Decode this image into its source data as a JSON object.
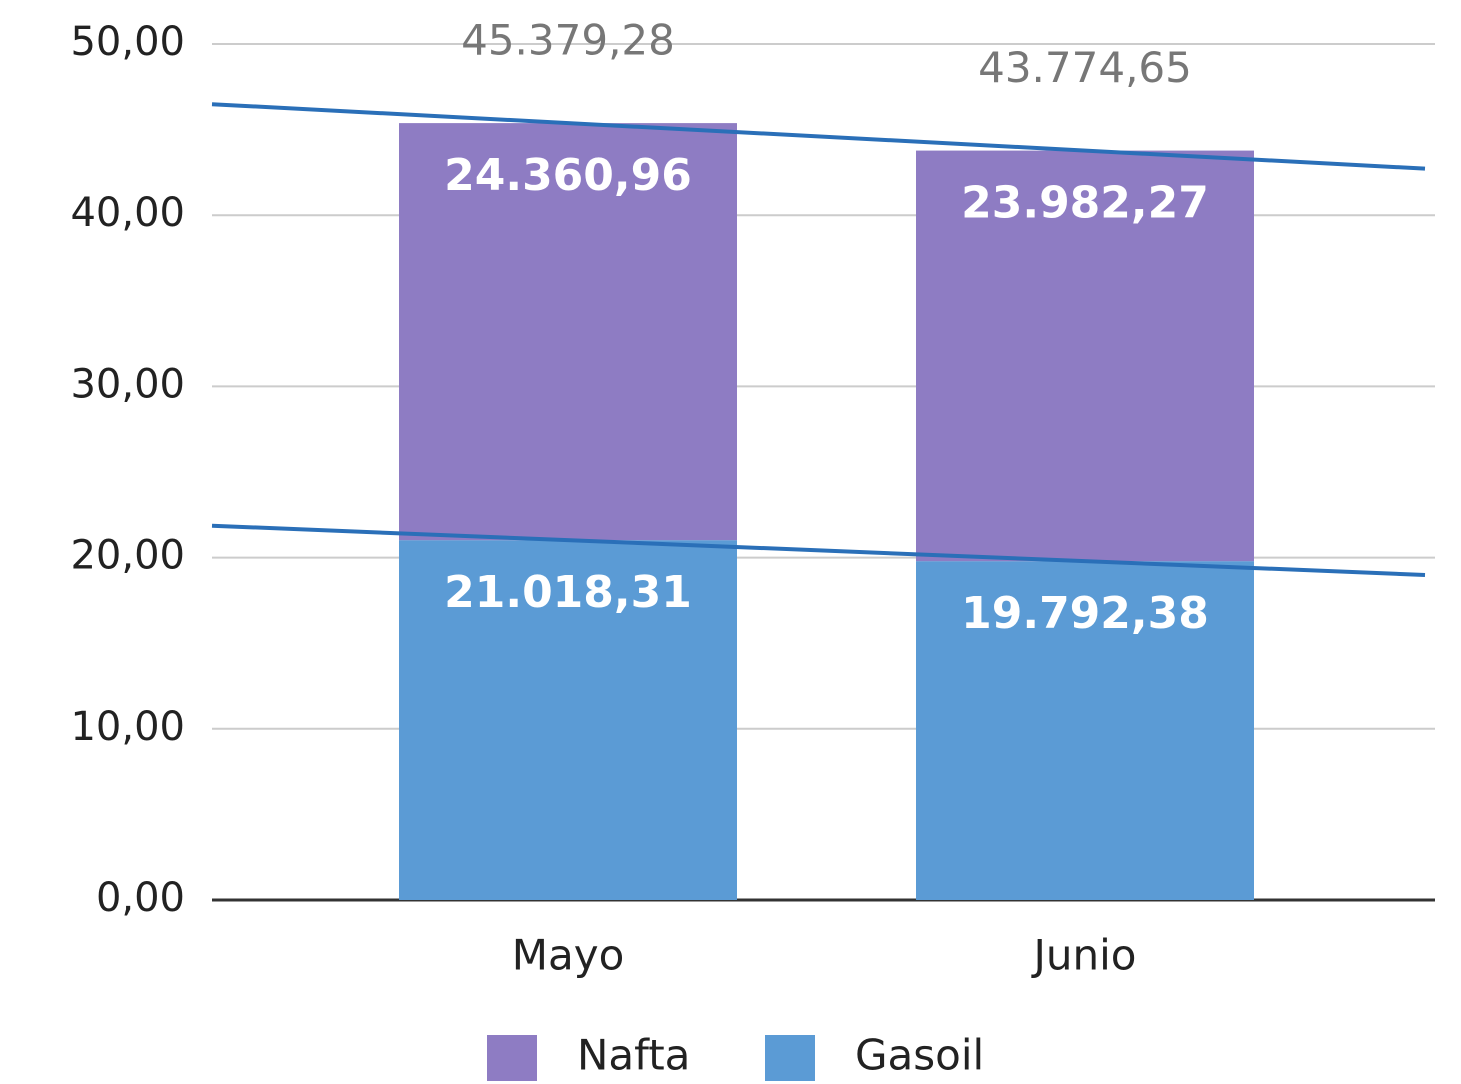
{
  "chart_data": {
    "type": "stacked_bar",
    "categories": [
      "Mayo",
      "Junio"
    ],
    "series": [
      {
        "name": "Gasoil",
        "color": "#5b9bd5",
        "values": [
          21.01831,
          19.79238
        ],
        "value_labels": [
          "21.018,31",
          "19.792,38"
        ]
      },
      {
        "name": "Nafta",
        "color": "#8e7cc3",
        "values": [
          24.36096,
          23.98227
        ],
        "value_labels": [
          "24.360,96",
          "23.982,27"
        ]
      }
    ],
    "totals": [
      45.37928,
      43.77465
    ],
    "total_labels": [
      "45.379,28",
      "43.774,65"
    ],
    "trendline": true,
    "trendline_color": "#2a6fb8",
    "ylim": [
      0,
      50
    ],
    "yticks": [
      {
        "value": 0,
        "label": "0,00"
      },
      {
        "value": 10,
        "label": "10,00"
      },
      {
        "value": 20,
        "label": "20,00"
      },
      {
        "value": 30,
        "label": "30,00"
      },
      {
        "value": 40,
        "label": "40,00"
      },
      {
        "value": 50,
        "label": "50,00"
      }
    ],
    "grid": true,
    "legend": "bottom"
  }
}
